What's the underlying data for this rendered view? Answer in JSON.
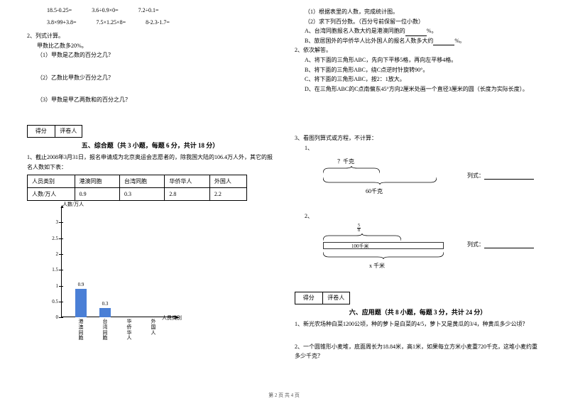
{
  "leftCol": {
    "exprRow1": [
      "18.5-0.25=",
      "3.6÷0.9×0=",
      "7.2÷0.1="
    ],
    "exprRow2": [
      "3.8×99+3.8=",
      "7.5×1.25×8=",
      "8-2.3-1.7="
    ],
    "q2": "2、列式计算。",
    "q2a": "甲数比乙数多20%。",
    "q2a1": "（1）甲数是乙数的百分之几？",
    "q2a2": "（2）乙数比甲数少百分之几？",
    "q2a3": "（3）甲数是甲乙两数和的百分之几？",
    "scoreLabels": [
      "得分",
      "评卷人"
    ],
    "section5Title": "五、综合题（共 3 小题，每题 6 分，共计 18 分）",
    "s5q1": "1、截止2008年3月31日，报名申请成为北京奥运会志愿者的，除我国大陆的106.4万人外，其它的报名人数如下表：",
    "table": {
      "headers": [
        "人员类别",
        "港澳同胞",
        "台湾同胞",
        "华侨华人",
        "外国人"
      ],
      "row": [
        "人数/万人",
        "0.9",
        "0.3",
        "2.8",
        "2.2"
      ]
    },
    "chart": {
      "yTitle": "人数/万人",
      "xTitle": "人员类别",
      "yTicks": [
        {
          "v": "3",
          "pos": 0.857
        },
        {
          "v": "2.5",
          "pos": 0.714
        },
        {
          "v": "2",
          "pos": 0.571
        },
        {
          "v": "1.5",
          "pos": 0.429
        },
        {
          "v": "1",
          "pos": 0.286
        },
        {
          "v": "0.5",
          "pos": 0.143
        },
        {
          "v": "0",
          "pos": 0.0
        }
      ],
      "axisTop": 4,
      "axisBottom": 20,
      "barColor": "#4a7fd6",
      "bars": [
        {
          "label": "0.9",
          "value": 0.9,
          "x": 48,
          "cat": "港澳同胞"
        },
        {
          "label": "0.3",
          "value": 0.3,
          "x": 82,
          "cat": "台湾同胞"
        },
        {
          "label": "",
          "value": 0,
          "x": 116,
          "cat": "华侨华人"
        },
        {
          "label": "",
          "value": 0,
          "x": 150,
          "cat": "外国人"
        }
      ],
      "maxVal": 3.5
    }
  },
  "rightCol": {
    "r1": "（1）根据表里的人数，完成统计图。",
    "r2": "（2）求下列百分数。（百分号前保留一位小数）",
    "r2a": "A、台湾同胞报名人数大约是港澳同胞的",
    "r2b": "B、旅居国外的华侨华人比外国人的报名人数多大约",
    "q2title": "2、依次解答。",
    "q2a": "A、将下面的三角形ABC，先向下平移5格，再向左平移4格。",
    "q2b": "B、将下面的三角形ABC，绕C点逆时针旋转90°。",
    "q2c": "C、将下面的三角形ABC，按2：1放大。",
    "q2d": "D、在三角形ABC的C点南偏东45°方向2厘米处画一个直径3厘米的圆（长度为实际长度）。",
    "q3title": "3、看图列算式或方程，不计算：",
    "q3_1": "1、",
    "bracket1": {
      "top": "？千克",
      "bottom": "60千克",
      "formula": "列式："
    },
    "q3_2": "2、",
    "bracket2": {
      "topFrac": [
        "5",
        "8"
      ],
      "mid": "100千米",
      "bottom": "x 千米",
      "formula": "列式："
    },
    "section6Title": "六、应用题（共 8 小题，每题 3 分，共计 24 分）",
    "scoreLabels": [
      "得分",
      "评卷人"
    ],
    "s6q1": "1、新光农场种白菜1200公顷，种的萝卜是白菜的4/5，萝卜又是黄瓜的3/4，种黄瓜多少公顷？",
    "s6q2": "2、一个圆锥形小麦堆，底面周长为18.84米，高1米，如果每立方米小麦重720千克，这堆小麦约重多少千克？"
  },
  "footer": "第 2 页 共 4 页"
}
